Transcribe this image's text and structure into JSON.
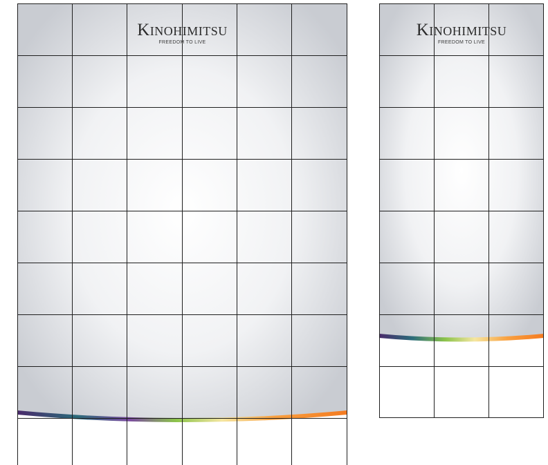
{
  "brand": {
    "name_initial": "K",
    "name_rest": "INOHIMITSU",
    "tagline": "FREEDOM TO LIVE"
  },
  "colors": {
    "background_light": "#ffffff",
    "background_edge": "#c9ccd2",
    "grid_line": "#1e1e1e",
    "ribbon_purple": "#4a2a6b",
    "ribbon_green": "#8bc34a",
    "ribbon_yellow": "#f5e6a0",
    "ribbon_orange": "#f47a20"
  },
  "panels": [
    {
      "id": "tall-panel",
      "columns": 6,
      "rows_shaded": 8,
      "rows_white": 1
    },
    {
      "id": "narrow-panel",
      "columns": 3,
      "rows_shaded": 6,
      "rows_white": 1
    }
  ]
}
